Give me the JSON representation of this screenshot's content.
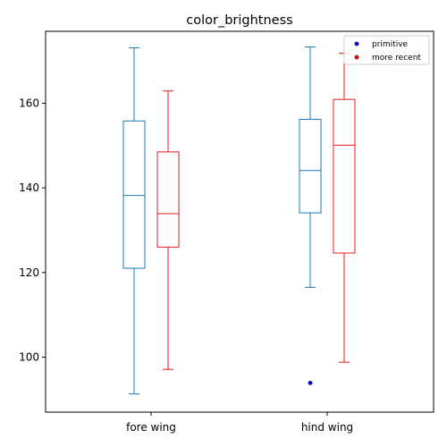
{
  "chart_data": {
    "type": "box",
    "title": "color_brightness",
    "xlabel": "",
    "ylabel": "",
    "categories": [
      "fore wing",
      "hind wing"
    ],
    "ylim": [
      87,
      177
    ],
    "yticks": [
      100,
      120,
      140,
      160
    ],
    "grid": false,
    "legend_position": "top-right",
    "series": [
      {
        "name": "primitive",
        "color": "#1f77b4",
        "marker_color": "#0000ff",
        "boxes": [
          {
            "category": "fore wing",
            "whisker_low": 91.3,
            "q1": 121.0,
            "median": 138.2,
            "q3": 155.8,
            "whisker_high": 173.1,
            "outliers": []
          },
          {
            "category": "hind wing",
            "whisker_low": 116.5,
            "q1": 134.1,
            "median": 144.1,
            "q3": 156.2,
            "whisker_high": 173.3,
            "outliers": [
              93.9
            ]
          }
        ]
      },
      {
        "name": "more recent",
        "color": "#e31a1c",
        "marker_color": "#ff0000",
        "boxes": [
          {
            "category": "fore wing",
            "whisker_low": 97.1,
            "q1": 126.0,
            "median": 133.9,
            "q3": 148.5,
            "whisker_high": 162.9,
            "outliers": []
          },
          {
            "category": "hind wing",
            "whisker_low": 98.8,
            "q1": 124.6,
            "median": 150.1,
            "q3": 160.9,
            "whisker_high": 171.8,
            "outliers": []
          }
        ]
      }
    ]
  }
}
